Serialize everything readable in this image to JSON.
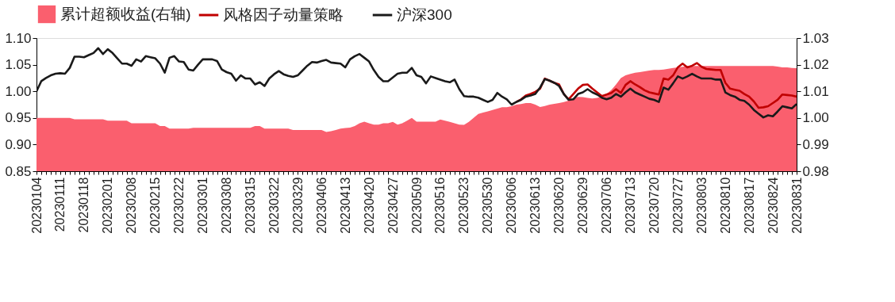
{
  "chart_data": {
    "type": "line",
    "legend": "top",
    "grid": false,
    "line_style": "solid",
    "categories": [
      "20230104",
      null,
      null,
      null,
      null,
      "20230111",
      null,
      null,
      null,
      null,
      "20230118",
      null,
      null,
      null,
      null,
      "20230201",
      null,
      null,
      null,
      null,
      "20230208",
      null,
      null,
      null,
      null,
      "20230215",
      null,
      null,
      null,
      null,
      "20230222",
      null,
      null,
      null,
      null,
      "20230301",
      null,
      null,
      null,
      null,
      "20230308",
      null,
      null,
      null,
      null,
      "20230315",
      null,
      null,
      null,
      null,
      "20230322",
      null,
      null,
      null,
      null,
      "20230329",
      null,
      null,
      null,
      null,
      "20230406",
      null,
      null,
      null,
      null,
      "20230413",
      null,
      null,
      null,
      null,
      "20230420",
      null,
      null,
      null,
      null,
      "20230427",
      null,
      null,
      null,
      null,
      "20230509",
      null,
      null,
      null,
      null,
      "20230516",
      null,
      null,
      null,
      null,
      "20230523",
      null,
      null,
      null,
      null,
      "20230530",
      null,
      null,
      null,
      null,
      "20230606",
      null,
      null,
      null,
      null,
      "20230613",
      null,
      null,
      null,
      null,
      "20230620",
      null,
      null,
      null,
      null,
      "20230629",
      null,
      null,
      null,
      null,
      "20230706",
      null,
      null,
      null,
      null,
      "20230713",
      null,
      null,
      null,
      null,
      "20230720",
      null,
      null,
      null,
      null,
      "20230727",
      null,
      null,
      null,
      null,
      "20230803",
      null,
      null,
      null,
      null,
      "20230810",
      null,
      null,
      null,
      null,
      "20230817",
      null,
      null,
      null,
      null,
      "20230824",
      null,
      null,
      null,
      null,
      "20230831"
    ],
    "ylim": [
      0.85,
      1.1
    ],
    "yticks": [
      0.85,
      {
        "value": 0.9,
        "label": "0.90"
      },
      0.95,
      {
        "value": 1.0,
        "label": "1.00"
      },
      1.05,
      {
        "value": 1.1,
        "label": "1.10"
      }
    ],
    "y2lim": [
      0.98,
      1.03
    ],
    "y2ticks": [
      0.98,
      0.99,
      {
        "value": 1.0,
        "label": "1.00"
      },
      1.01,
      1.02,
      1.03
    ],
    "series": [
      {
        "name": "累计超额收益(右轴)",
        "type": "area",
        "axis": "y2",
        "color": "#fa5f6e",
        "values": [
          1.0,
          1.0,
          1.0,
          1.0,
          1.0,
          1.0,
          1.0,
          1.0,
          0.9995,
          0.9995,
          0.9995,
          0.9995,
          0.9995,
          0.9995,
          0.9995,
          0.999,
          0.999,
          0.999,
          0.999,
          0.999,
          0.998,
          0.998,
          0.998,
          0.998,
          0.998,
          0.998,
          0.997,
          0.997,
          0.996,
          0.996,
          0.996,
          0.996,
          0.996,
          0.9963,
          0.9963,
          0.9963,
          0.9963,
          0.9963,
          0.9963,
          0.9963,
          0.9963,
          0.9963,
          0.9963,
          0.9963,
          0.9963,
          0.9963,
          0.997,
          0.997,
          0.996,
          0.996,
          0.996,
          0.996,
          0.996,
          0.996,
          0.9955,
          0.9955,
          0.9955,
          0.9955,
          0.9955,
          0.9955,
          0.9955,
          0.9947,
          0.995,
          0.9955,
          0.996,
          0.9962,
          0.9964,
          0.997,
          0.998,
          0.9986,
          0.998,
          0.9975,
          0.9975,
          0.998,
          0.998,
          0.9985,
          0.9975,
          0.998,
          0.999,
          1.0,
          0.9986,
          0.9986,
          0.9986,
          0.9986,
          0.9986,
          0.9994,
          0.999,
          0.9985,
          0.998,
          0.9975,
          0.9974,
          0.9985,
          1.0,
          1.0015,
          1.002,
          1.0025,
          1.003,
          1.0035,
          1.004,
          1.004,
          1.0044,
          1.005,
          1.0052,
          1.0056,
          1.0056,
          1.005,
          1.0041,
          1.0045,
          1.005,
          1.0053,
          1.0056,
          1.006,
          1.0065,
          1.0075,
          1.0079,
          1.0078,
          1.0075,
          1.0073,
          1.0075,
          1.008,
          1.009,
          1.0105,
          1.0126,
          1.015,
          1.016,
          1.0165,
          1.017,
          1.0172,
          1.0175,
          1.0178,
          1.018,
          1.018,
          1.0182,
          1.0185,
          1.0188,
          1.019,
          1.0192,
          1.0195,
          1.0195,
          1.0195,
          1.0195,
          1.0195,
          1.0195,
          1.0195,
          1.0195,
          1.0195,
          1.0195,
          1.0195,
          1.0195,
          1.0195,
          1.0195,
          1.0195,
          1.0195,
          1.0195,
          1.0195,
          1.0195,
          1.0193,
          1.019,
          1.019,
          1.0188,
          1.0187
        ]
      },
      {
        "name": "风格因子动量策略",
        "color": "#c00000",
        "values": [
          null,
          null,
          null,
          null,
          null,
          null,
          null,
          null,
          null,
          null,
          null,
          null,
          null,
          null,
          null,
          null,
          null,
          null,
          null,
          null,
          null,
          null,
          null,
          null,
          null,
          null,
          null,
          null,
          null,
          null,
          null,
          null,
          null,
          null,
          null,
          null,
          null,
          null,
          null,
          null,
          null,
          null,
          null,
          null,
          null,
          null,
          null,
          null,
          null,
          null,
          null,
          null,
          null,
          null,
          null,
          null,
          null,
          null,
          null,
          null,
          null,
          null,
          null,
          null,
          null,
          null,
          null,
          null,
          null,
          null,
          null,
          null,
          null,
          null,
          null,
          null,
          null,
          null,
          null,
          null,
          null,
          null,
          null,
          null,
          null,
          null,
          null,
          null,
          null,
          null,
          null,
          null,
          null,
          null,
          null,
          null,
          null,
          null,
          null,
          null,
          null,
          0.98,
          0.985,
          0.992,
          0.995,
          0.999,
          1.005,
          1.024,
          1.02,
          1.016,
          1.013,
          0.995,
          0.985,
          0.995,
          1.005,
          1.012,
          1.013,
          1.005,
          0.998,
          0.991,
          0.994,
          0.997,
          1.004,
          0.997,
          1.012,
          1.019,
          1.013,
          1.008,
          1.002,
          0.998,
          0.996,
          0.994,
          1.024,
          1.022,
          1.03,
          1.045,
          1.052,
          1.045,
          1.048,
          1.053,
          1.046,
          1.042,
          1.041,
          1.04,
          1.04,
          1.016,
          1.005,
          1.003,
          1.001,
          0.995,
          0.99,
          0.981,
          0.969,
          0.97,
          0.972,
          0.978,
          0.984,
          0.994,
          0.993,
          0.992,
          0.99
        ]
      },
      {
        "name": "沪深300",
        "color": "#1a1a1a",
        "values": [
          1.0,
          1.019,
          1.025,
          1.03,
          1.033,
          1.034,
          1.033,
          1.044,
          1.065,
          1.065,
          1.064,
          1.068,
          1.072,
          1.081,
          1.07,
          1.079,
          1.072,
          1.062,
          1.052,
          1.052,
          1.048,
          1.06,
          1.056,
          1.066,
          1.064,
          1.062,
          1.052,
          1.035,
          1.063,
          1.066,
          1.056,
          1.055,
          1.041,
          1.039,
          1.05,
          1.06,
          1.06,
          1.06,
          1.057,
          1.041,
          1.036,
          1.033,
          1.02,
          1.03,
          1.024,
          1.024,
          1.013,
          1.017,
          1.01,
          1.024,
          1.032,
          1.038,
          1.032,
          1.029,
          1.027,
          1.03,
          1.039,
          1.048,
          1.055,
          1.054,
          1.057,
          1.059,
          1.054,
          1.053,
          1.052,
          1.045,
          1.06,
          1.066,
          1.07,
          1.063,
          1.056,
          1.04,
          1.027,
          1.019,
          1.019,
          1.026,
          1.033,
          1.035,
          1.035,
          1.044,
          1.03,
          1.027,
          1.015,
          1.028,
          1.025,
          1.022,
          1.019,
          1.017,
          1.022,
          1.004,
          0.991,
          0.99,
          0.99,
          0.988,
          0.984,
          0.98,
          0.984,
          0.997,
          0.99,
          0.985,
          0.975,
          0.98,
          0.984,
          0.99,
          0.992,
          0.995,
          1.007,
          1.023,
          1.02,
          1.016,
          1.01,
          0.995,
          0.984,
          0.985,
          0.995,
          0.998,
          1.004,
          0.998,
          0.994,
          0.988,
          0.985,
          0.988,
          0.995,
          0.99,
          0.998,
          1.005,
          0.998,
          0.994,
          0.99,
          0.986,
          0.984,
          0.98,
          1.007,
          1.003,
          1.015,
          1.028,
          1.024,
          1.028,
          1.033,
          1.028,
          1.024,
          1.024,
          1.024,
          1.022,
          1.022,
          0.998,
          0.993,
          0.99,
          0.984,
          0.982,
          0.975,
          0.965,
          0.958,
          0.951,
          0.955,
          0.953,
          0.962,
          0.972,
          0.97,
          0.968,
          0.976
        ]
      }
    ]
  }
}
